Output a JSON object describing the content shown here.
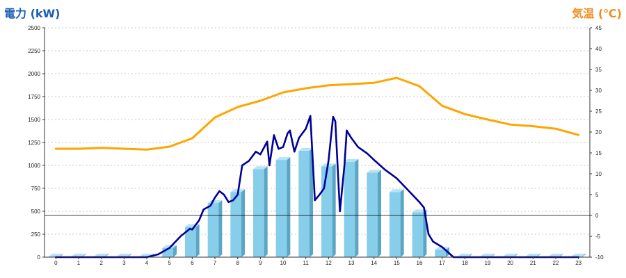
{
  "chart_data": {
    "type": "bar",
    "left_axis_title": "電力 (kW)",
    "right_axis_title": "気温 (℃)",
    "categories": [
      "0",
      "1",
      "2",
      "3",
      "4",
      "5",
      "6",
      "7",
      "8",
      "9",
      "10",
      "11",
      "12",
      "13",
      "14",
      "15",
      "16",
      "17",
      "18",
      "19",
      "20",
      "21",
      "22",
      "23"
    ],
    "y_left_range": [
      0,
      2500
    ],
    "y_left_ticks": [
      "0",
      "250",
      "500",
      "750",
      "1000",
      "1250",
      "1500",
      "1750",
      "2000",
      "2250",
      "2500"
    ],
    "y_right_range": [
      -10,
      45
    ],
    "y_right_ticks": [
      "-10",
      "-5",
      "0",
      "5",
      "10",
      "15",
      "20",
      "25",
      "30",
      "35",
      "40",
      "45"
    ],
    "grid": true,
    "reference_line_right": 0,
    "colors": {
      "bar_front": "#87ceeb",
      "bar_side": "#5ba6c4",
      "bar_top": "#b8e2f5",
      "power_line": "#000099",
      "temperature_line": "#ffa500",
      "left_title": "#1a5fb4",
      "right_title": "#f08c1e"
    },
    "series": [
      {
        "kind": "bar",
        "axis": "left",
        "values": [
          0,
          0,
          0,
          0,
          0,
          100,
          330,
          590,
          710,
          960,
          1060,
          1160,
          990,
          1040,
          920,
          710,
          490,
          80,
          0,
          0,
          0,
          0,
          0,
          0
        ]
      },
      {
        "kind": "line",
        "axis": "left",
        "points": [
          [
            0,
            0
          ],
          [
            1,
            0
          ],
          [
            2,
            0
          ],
          [
            3,
            0
          ],
          [
            4,
            0
          ],
          [
            4.5,
            30
          ],
          [
            5,
            100
          ],
          [
            5.5,
            230
          ],
          [
            5.9,
            310
          ],
          [
            6,
            300
          ],
          [
            6.3,
            400
          ],
          [
            6.5,
            520
          ],
          [
            6.8,
            560
          ],
          [
            7,
            650
          ],
          [
            7.2,
            720
          ],
          [
            7.4,
            680
          ],
          [
            7.6,
            600
          ],
          [
            7.8,
            620
          ],
          [
            8,
            680
          ],
          [
            8.2,
            1000
          ],
          [
            8.5,
            1050
          ],
          [
            8.8,
            1150
          ],
          [
            9,
            1120
          ],
          [
            9.3,
            1260
          ],
          [
            9.4,
            1000
          ],
          [
            9.6,
            1330
          ],
          [
            9.8,
            1180
          ],
          [
            10,
            1200
          ],
          [
            10.2,
            1350
          ],
          [
            10.3,
            1380
          ],
          [
            10.5,
            1150
          ],
          [
            10.7,
            1300
          ],
          [
            11,
            1400
          ],
          [
            11.2,
            1540
          ],
          [
            11.4,
            620
          ],
          [
            11.6,
            680
          ],
          [
            11.8,
            750
          ],
          [
            12,
            1050
          ],
          [
            12.2,
            1530
          ],
          [
            12.3,
            1480
          ],
          [
            12.5,
            500
          ],
          [
            12.7,
            1000
          ],
          [
            12.8,
            1380
          ],
          [
            13,
            1300
          ],
          [
            13.3,
            1200
          ],
          [
            13.7,
            1130
          ],
          [
            14,
            1060
          ],
          [
            14.5,
            950
          ],
          [
            15,
            860
          ],
          [
            15.5,
            730
          ],
          [
            16,
            600
          ],
          [
            16.2,
            540
          ],
          [
            16.4,
            250
          ],
          [
            16.6,
            170
          ],
          [
            17,
            110
          ],
          [
            17.5,
            0
          ],
          [
            18,
            0
          ],
          [
            19,
            0
          ],
          [
            20,
            0
          ],
          [
            21,
            0
          ],
          [
            22,
            0
          ],
          [
            23,
            0
          ]
        ]
      },
      {
        "kind": "line",
        "axis": "right",
        "points": [
          [
            0,
            16
          ],
          [
            1,
            16
          ],
          [
            2,
            16.2
          ],
          [
            3,
            16
          ],
          [
            4,
            15.8
          ],
          [
            5,
            16.5
          ],
          [
            6,
            18.5
          ],
          [
            7,
            23.5
          ],
          [
            8,
            26
          ],
          [
            9,
            27.5
          ],
          [
            10,
            29.5
          ],
          [
            11,
            30.5
          ],
          [
            12,
            31.2
          ],
          [
            13,
            31.5
          ],
          [
            14,
            31.8
          ],
          [
            15,
            33
          ],
          [
            16,
            31
          ],
          [
            17,
            26.3
          ],
          [
            18,
            24.3
          ],
          [
            19,
            23
          ],
          [
            20,
            21.8
          ],
          [
            21,
            21.4
          ],
          [
            22,
            20.8
          ],
          [
            23,
            19.3
          ]
        ]
      }
    ]
  }
}
